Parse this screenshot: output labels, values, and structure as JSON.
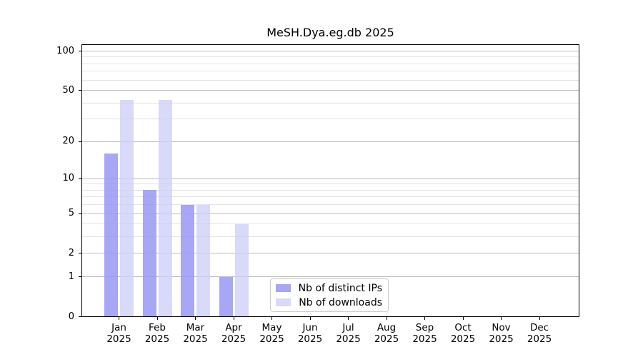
{
  "chart_data": {
    "type": "bar",
    "title": "MeSH.Dya.eg.db 2025",
    "year_label": "2025",
    "categories": [
      "Jan",
      "Feb",
      "Mar",
      "Apr",
      "May",
      "Jun",
      "Jul",
      "Aug",
      "Sep",
      "Oct",
      "Nov",
      "Dec"
    ],
    "series": [
      {
        "name": "Nb of distinct IPs",
        "color": "#a7a7f6",
        "values": [
          16,
          8,
          6,
          1,
          0,
          0,
          0,
          0,
          0,
          0,
          0,
          0
        ]
      },
      {
        "name": "Nb of downloads",
        "color": "#d9d9f9",
        "values": [
          42,
          42,
          6,
          4,
          0,
          0,
          0,
          0,
          0,
          0,
          0,
          0
        ]
      }
    ],
    "xlabel": "",
    "ylabel": "",
    "y_scale": "log10(1+value)",
    "y_major_ticks": [
      0,
      1,
      2,
      5,
      10,
      20,
      50,
      100
    ],
    "y_minor_ticks": [
      3,
      4,
      6,
      7,
      8,
      9,
      30,
      40,
      60,
      70,
      80,
      90
    ],
    "ylim": [
      0,
      112
    ],
    "grid": true,
    "legend_position": "lower-center"
  },
  "colors": {
    "grid_major": "#c9c9c9",
    "grid_minor": "#ededed",
    "axis_frame": "#000000",
    "background": "#ffffff"
  }
}
